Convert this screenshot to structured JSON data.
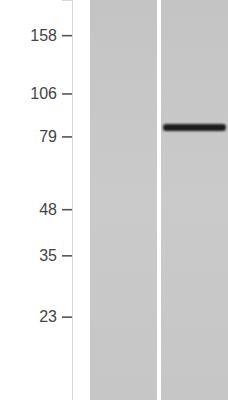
{
  "chart_data": {
    "type": "blot",
    "categories": [
      null,
      null
    ],
    "values": [
      null,
      84
    ],
    "log": "y",
    "ylim": [
      13,
      201
    ],
    "yticks": [
      158,
      106,
      79,
      48,
      35,
      23
    ],
    "tick_labels": "y",
    "color": "#1e1e1e"
  }
}
